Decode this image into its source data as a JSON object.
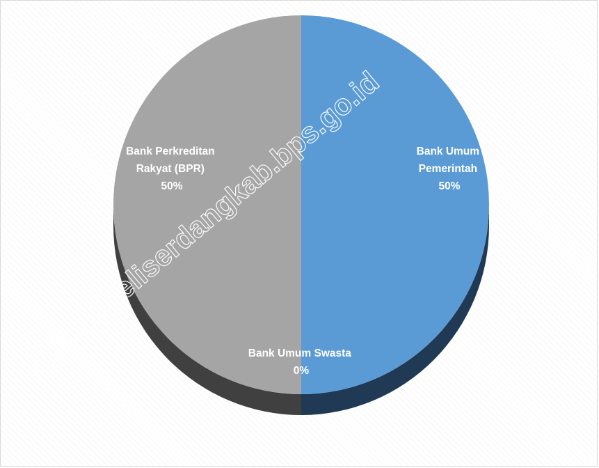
{
  "chart_data": {
    "type": "pie",
    "title": "",
    "style": "3d",
    "slices": [
      {
        "label_lines": [
          "Bank Umum",
          "Pemerintah"
        ],
        "value": 50,
        "percent_label": "50%",
        "color": "#5b9bd5",
        "side_color": "#203a55"
      },
      {
        "label_lines": [
          "Bank Umum Swasta"
        ],
        "value": 0,
        "percent_label": "0%",
        "color": "#ed7d31",
        "side_color": "#7a3d16"
      },
      {
        "label_lines": [
          "Bank Perkreditan",
          "Rakyat (BPR)"
        ],
        "value": 50,
        "percent_label": "50%",
        "color": "#a5a5a5",
        "side_color": "#404040"
      }
    ]
  },
  "watermark": {
    "text": "https://deliserdangkab.bps.go.id"
  }
}
